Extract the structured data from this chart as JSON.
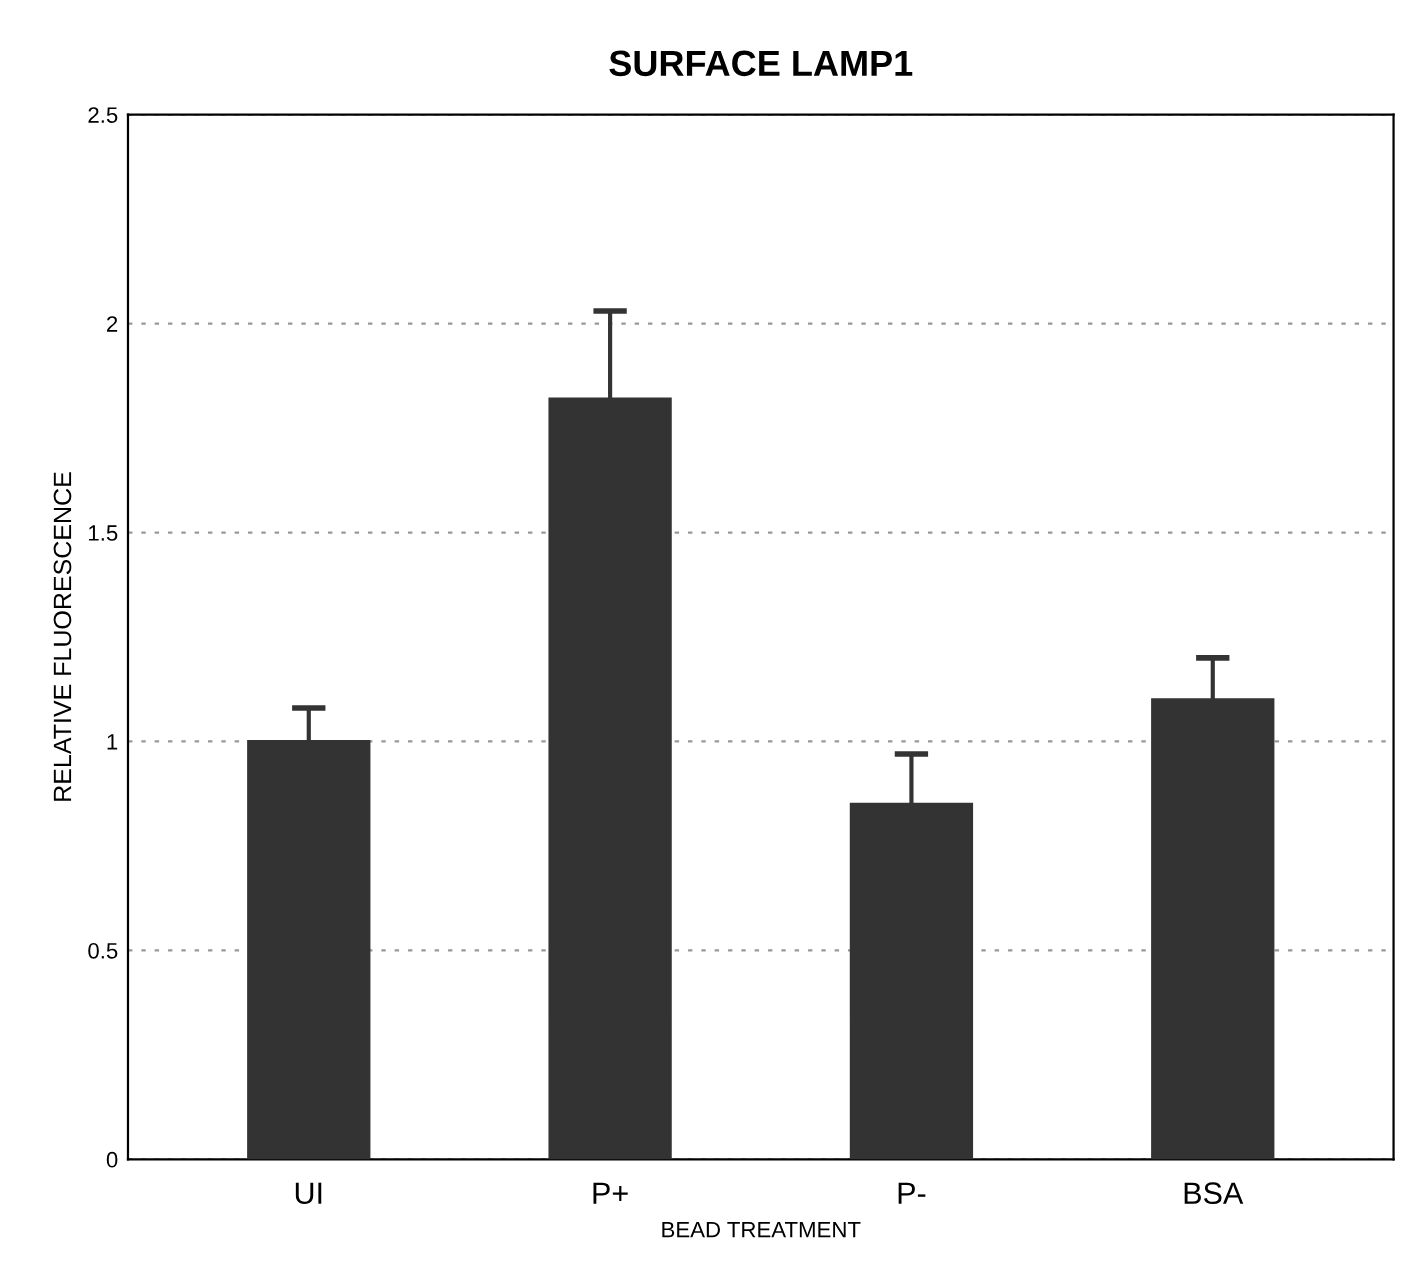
{
  "chart_data": {
    "type": "bar",
    "title": "SURFACE LAMP1",
    "xlabel": "BEAD TREATMENT",
    "ylabel": "RELATIVE FLUORESCENCE",
    "categories": [
      "UI",
      "P+",
      "P-",
      "BSA"
    ],
    "values": [
      1.0,
      1.82,
      0.85,
      1.1
    ],
    "errors": [
      0.08,
      0.21,
      0.12,
      0.1
    ],
    "color": "#333333",
    "ylim": [
      0,
      2.5
    ],
    "yticks": [
      0,
      0.5,
      1,
      1.5,
      2,
      2.5
    ],
    "grid": "y"
  }
}
